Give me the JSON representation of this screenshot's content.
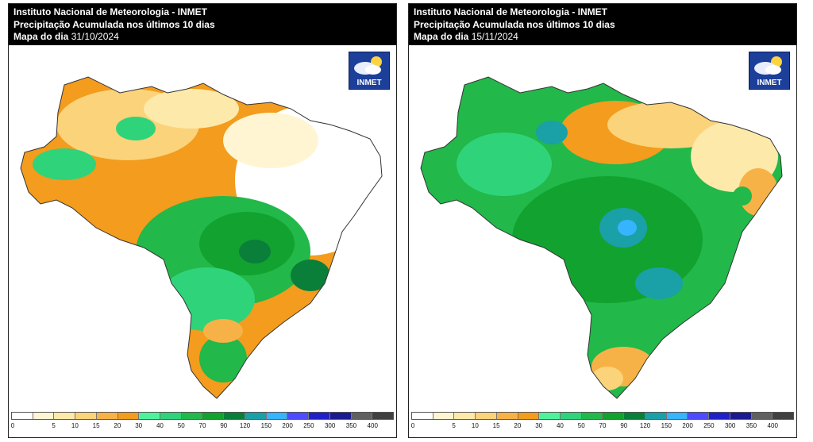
{
  "panels": [
    {
      "id": "left",
      "title_line1": "Instituto Nacional de Meteorologia - INMET",
      "title_line2": "Precipitação Acumulada nos últimos 10 dias",
      "title_line3_label": "Mapa do dia",
      "date": "31/10/2024",
      "logo_text": "INMET"
    },
    {
      "id": "right",
      "title_line1": "Instituto Nacional de Meteorologia - INMET",
      "title_line2": "Precipitação Acumulada nos últimos 10 dias",
      "title_line3_label": "Mapa do dia",
      "date": "15/11/2024",
      "logo_text": "INMET"
    }
  ],
  "legend": {
    "ticks": [
      "0",
      "5",
      "10",
      "15",
      "20",
      "30",
      "40",
      "50",
      "70",
      "90",
      "120",
      "150",
      "200",
      "250",
      "300",
      "350",
      "400"
    ],
    "colors": [
      "#ffffff",
      "#fff5d2",
      "#fde9aa",
      "#fbd37a",
      "#f7b247",
      "#f39c1d",
      "#4ff29b",
      "#2fd37a",
      "#22b84a",
      "#12a22f",
      "#0a7f3a",
      "#1aa0a7",
      "#36b4ff",
      "#4d4dff",
      "#2020c8",
      "#1b1b8f",
      "#606060",
      "#404040"
    ]
  }
}
